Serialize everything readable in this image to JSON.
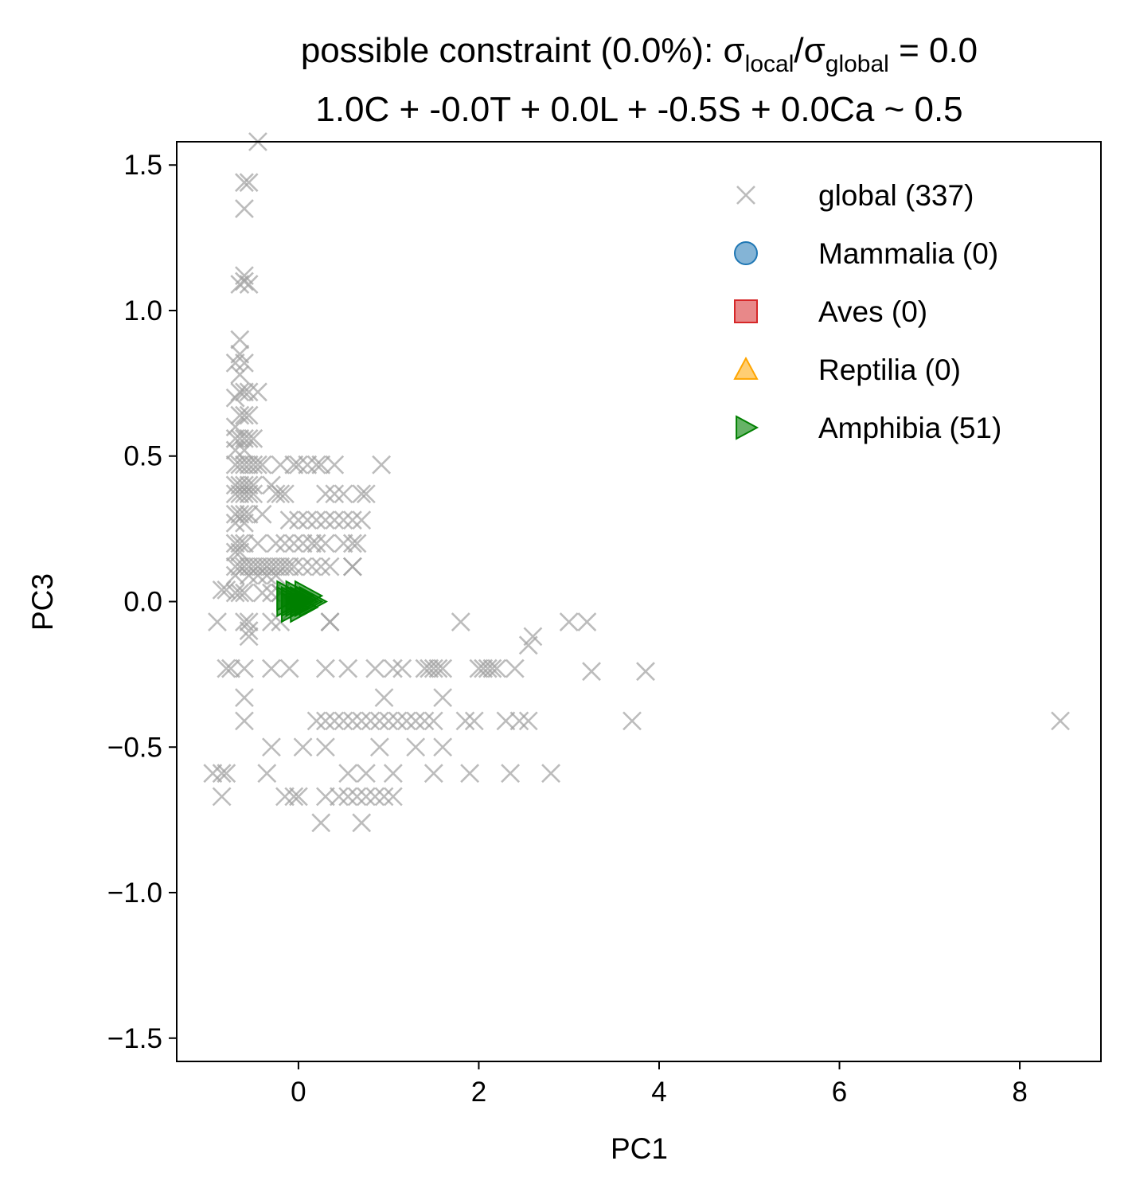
{
  "chart_data": {
    "type": "scatter",
    "title": {
      "line1_prefix": "possible constraint (0.0%): σ",
      "sub_local": "local",
      "slash": "/σ",
      "sub_global": "global",
      "line1_suffix": " = 0.0",
      "line2": "1.0C + -0.0T + 0.0L + -0.5S + 0.0Ca ~ 0.5"
    },
    "xlabel": "PC1",
    "ylabel": "PC3",
    "xlim": [
      -1.35,
      8.9
    ],
    "ylim": [
      -1.58,
      1.58
    ],
    "xticks": [
      0,
      2,
      4,
      6,
      8
    ],
    "xtick_labels": [
      "0",
      "2",
      "4",
      "6",
      "8"
    ],
    "yticks": [
      1.5,
      1.0,
      0.5,
      0.0,
      -0.5,
      -1.0,
      -1.5
    ],
    "ytick_labels": [
      "1.5",
      "1.0",
      "0.5",
      "0.0",
      "−0.5",
      "−1.0",
      "−1.5"
    ],
    "grid": false,
    "legend_position": "top-right",
    "legend": [
      {
        "label": "global (337)",
        "marker": "x",
        "color": "#a0a0a0"
      },
      {
        "label": "Mammalia (0)",
        "marker": "circle",
        "color": "#1f77b4"
      },
      {
        "label": "Aves (0)",
        "marker": "square",
        "color": "#d62728"
      },
      {
        "label": "Reptilia (0)",
        "marker": "triangle-up",
        "color": "#ffa500"
      },
      {
        "label": "Amphibia (51)",
        "marker": "triangle-right",
        "color": "#008000"
      }
    ],
    "series": [
      {
        "name": "global (337)",
        "marker": "x",
        "color": "#a0a0a0",
        "points": [
          [
            -0.45,
            1.58
          ],
          [
            -0.6,
            1.44
          ],
          [
            -0.55,
            1.44
          ],
          [
            -0.6,
            1.35
          ],
          [
            -0.6,
            1.12
          ],
          [
            -0.65,
            1.09
          ],
          [
            -0.55,
            1.09
          ],
          [
            -0.6,
            1.1
          ],
          [
            -0.65,
            0.9
          ],
          [
            -0.65,
            0.85
          ],
          [
            -0.6,
            0.82
          ],
          [
            -0.7,
            0.82
          ],
          [
            -0.65,
            0.78
          ],
          [
            -0.65,
            0.72
          ],
          [
            -0.6,
            0.72
          ],
          [
            -0.55,
            0.72
          ],
          [
            -0.7,
            0.7
          ],
          [
            -0.45,
            0.72
          ],
          [
            -0.65,
            0.64
          ],
          [
            -0.6,
            0.64
          ],
          [
            -0.55,
            0.64
          ],
          [
            -0.7,
            0.6
          ],
          [
            -0.7,
            0.56
          ],
          [
            -0.65,
            0.56
          ],
          [
            -0.6,
            0.56
          ],
          [
            -0.55,
            0.56
          ],
          [
            -0.5,
            0.56
          ],
          [
            -0.7,
            0.52
          ],
          [
            -0.6,
            0.52
          ],
          [
            -0.7,
            0.47
          ],
          [
            -0.65,
            0.47
          ],
          [
            -0.6,
            0.47
          ],
          [
            -0.55,
            0.47
          ],
          [
            -0.5,
            0.47
          ],
          [
            -0.7,
            0.4
          ],
          [
            -0.65,
            0.4
          ],
          [
            -0.6,
            0.4
          ],
          [
            -0.55,
            0.4
          ],
          [
            -0.5,
            0.4
          ],
          [
            -0.7,
            0.37
          ],
          [
            -0.65,
            0.37
          ],
          [
            -0.6,
            0.37
          ],
          [
            -0.55,
            0.37
          ],
          [
            -0.5,
            0.37
          ],
          [
            -0.7,
            0.3
          ],
          [
            -0.65,
            0.3
          ],
          [
            -0.6,
            0.3
          ],
          [
            -0.55,
            0.3
          ],
          [
            -0.4,
            0.3
          ],
          [
            -0.7,
            0.27
          ],
          [
            -0.6,
            0.27
          ],
          [
            -0.7,
            0.2
          ],
          [
            -0.65,
            0.2
          ],
          [
            -0.6,
            0.2
          ],
          [
            -0.45,
            0.2
          ],
          [
            -0.7,
            0.17
          ],
          [
            -0.65,
            0.17
          ],
          [
            -0.7,
            0.12
          ],
          [
            -0.65,
            0.12
          ],
          [
            -0.6,
            0.12
          ],
          [
            -0.55,
            0.12
          ],
          [
            -0.5,
            0.12
          ],
          [
            -0.45,
            0.12
          ],
          [
            -0.4,
            0.12
          ],
          [
            -0.35,
            0.12
          ],
          [
            -0.3,
            0.12
          ],
          [
            -0.25,
            0.12
          ],
          [
            -0.2,
            0.12
          ],
          [
            -0.15,
            0.12
          ],
          [
            -0.1,
            0.12
          ],
          [
            -0.7,
            0.09
          ],
          [
            -0.55,
            0.09
          ],
          [
            -0.45,
            0.09
          ],
          [
            -0.35,
            0.09
          ],
          [
            -0.25,
            0.09
          ],
          [
            -0.85,
            0.04
          ],
          [
            -0.8,
            0.04
          ],
          [
            -0.7,
            0.03
          ],
          [
            -0.65,
            0.03
          ],
          [
            -0.6,
            0.03
          ],
          [
            -0.4,
            0.03
          ],
          [
            -0.3,
            0.03
          ],
          [
            -0.2,
            0.03
          ],
          [
            -0.45,
            0.47
          ],
          [
            -0.4,
            0.47
          ],
          [
            -0.2,
            0.47
          ],
          [
            -0.3,
            0.4
          ],
          [
            -0.2,
            0.37
          ],
          [
            -0.05,
            0.47
          ],
          [
            0.0,
            0.47
          ],
          [
            0.1,
            0.47
          ],
          [
            0.2,
            0.47
          ],
          [
            0.25,
            0.47
          ],
          [
            0.4,
            0.47
          ],
          [
            0.92,
            0.47
          ],
          [
            -0.25,
            0.37
          ],
          [
            -0.15,
            0.37
          ],
          [
            0.3,
            0.37
          ],
          [
            0.4,
            0.37
          ],
          [
            0.5,
            0.37
          ],
          [
            0.7,
            0.37
          ],
          [
            0.75,
            0.37
          ],
          [
            -0.1,
            0.28
          ],
          [
            0.0,
            0.28
          ],
          [
            0.1,
            0.28
          ],
          [
            0.2,
            0.28
          ],
          [
            0.3,
            0.28
          ],
          [
            0.4,
            0.28
          ],
          [
            0.5,
            0.28
          ],
          [
            0.6,
            0.28
          ],
          [
            0.7,
            0.28
          ],
          [
            -0.25,
            0.2
          ],
          [
            -0.15,
            0.2
          ],
          [
            -0.05,
            0.2
          ],
          [
            0.05,
            0.2
          ],
          [
            0.15,
            0.2
          ],
          [
            0.2,
            0.2
          ],
          [
            0.3,
            0.2
          ],
          [
            0.5,
            0.2
          ],
          [
            0.6,
            0.2
          ],
          [
            0.65,
            0.2
          ],
          [
            -0.05,
            0.12
          ],
          [
            0.05,
            0.12
          ],
          [
            0.15,
            0.12
          ],
          [
            0.25,
            0.12
          ],
          [
            0.35,
            0.12
          ],
          [
            0.6,
            0.12
          ],
          [
            0.6,
            0.12
          ],
          [
            -0.2,
            0.03
          ],
          [
            0.35,
            -0.07
          ],
          [
            -0.9,
            -0.07
          ],
          [
            -0.6,
            -0.07
          ],
          [
            -0.55,
            -0.07
          ],
          [
            -0.3,
            -0.07
          ],
          [
            -0.2,
            -0.07
          ],
          [
            0.35,
            -0.07
          ],
          [
            -0.55,
            -0.1
          ],
          [
            -0.55,
            -0.12
          ],
          [
            -0.8,
            -0.23
          ],
          [
            -0.75,
            -0.23
          ],
          [
            -0.6,
            -0.23
          ],
          [
            -0.3,
            -0.23
          ],
          [
            -0.1,
            -0.23
          ],
          [
            0.3,
            -0.23
          ],
          [
            0.55,
            -0.23
          ],
          [
            0.85,
            -0.23
          ],
          [
            1.05,
            -0.23
          ],
          [
            1.15,
            -0.23
          ],
          [
            1.4,
            -0.23
          ],
          [
            1.45,
            -0.23
          ],
          [
            1.5,
            -0.23
          ],
          [
            1.55,
            -0.23
          ],
          [
            1.6,
            -0.23
          ],
          [
            2.0,
            -0.23
          ],
          [
            2.05,
            -0.23
          ],
          [
            2.1,
            -0.23
          ],
          [
            2.15,
            -0.23
          ],
          [
            2.2,
            -0.23
          ],
          [
            2.4,
            -0.23
          ],
          [
            -0.6,
            -0.33
          ],
          [
            0.95,
            -0.33
          ],
          [
            1.6,
            -0.33
          ],
          [
            0.2,
            -0.41
          ],
          [
            0.3,
            -0.41
          ],
          [
            0.4,
            -0.41
          ],
          [
            0.5,
            -0.41
          ],
          [
            0.6,
            -0.41
          ],
          [
            0.7,
            -0.41
          ],
          [
            0.8,
            -0.41
          ],
          [
            0.9,
            -0.41
          ],
          [
            1.0,
            -0.41
          ],
          [
            1.1,
            -0.41
          ],
          [
            1.2,
            -0.41
          ],
          [
            1.3,
            -0.41
          ],
          [
            1.4,
            -0.41
          ],
          [
            1.5,
            -0.41
          ],
          [
            1.85,
            -0.41
          ],
          [
            1.95,
            -0.41
          ],
          [
            2.3,
            -0.41
          ],
          [
            2.45,
            -0.41
          ],
          [
            2.55,
            -0.41
          ],
          [
            3.7,
            -0.41
          ],
          [
            8.45,
            -0.41
          ],
          [
            -0.6,
            -0.41
          ],
          [
            -0.3,
            -0.5
          ],
          [
            0.05,
            -0.5
          ],
          [
            0.3,
            -0.5
          ],
          [
            0.9,
            -0.5
          ],
          [
            1.3,
            -0.5
          ],
          [
            1.6,
            -0.5
          ],
          [
            -0.95,
            -0.59
          ],
          [
            -0.85,
            -0.59
          ],
          [
            -0.8,
            -0.59
          ],
          [
            -0.35,
            -0.59
          ],
          [
            0.55,
            -0.59
          ],
          [
            0.75,
            -0.59
          ],
          [
            1.05,
            -0.59
          ],
          [
            1.5,
            -0.59
          ],
          [
            1.9,
            -0.59
          ],
          [
            2.35,
            -0.59
          ],
          [
            2.8,
            -0.59
          ],
          [
            -0.85,
            -0.67
          ],
          [
            -0.15,
            -0.67
          ],
          [
            -0.05,
            -0.67
          ],
          [
            0.0,
            -0.67
          ],
          [
            0.3,
            -0.67
          ],
          [
            0.45,
            -0.67
          ],
          [
            0.55,
            -0.67
          ],
          [
            0.65,
            -0.67
          ],
          [
            0.75,
            -0.67
          ],
          [
            0.85,
            -0.67
          ],
          [
            0.95,
            -0.67
          ],
          [
            1.05,
            -0.67
          ],
          [
            0.25,
            -0.76
          ],
          [
            0.7,
            -0.76
          ],
          [
            1.8,
            -0.07
          ],
          [
            3.0,
            -0.07
          ],
          [
            3.2,
            -0.07
          ],
          [
            2.6,
            -0.12
          ],
          [
            2.55,
            -0.15
          ],
          [
            3.25,
            -0.24
          ],
          [
            3.85,
            -0.24
          ]
        ]
      },
      {
        "name": "Amphibia (51)",
        "marker": "triangle-right",
        "color": "#008000",
        "points": [
          [
            -0.1,
            0.0
          ],
          [
            -0.05,
            0.0
          ],
          [
            0.0,
            0.0
          ],
          [
            0.05,
            0.0
          ],
          [
            0.1,
            0.0
          ],
          [
            0.15,
            0.0
          ],
          [
            -0.1,
            0.02
          ],
          [
            0.0,
            0.02
          ],
          [
            0.1,
            0.02
          ],
          [
            -0.05,
            -0.02
          ],
          [
            0.05,
            -0.02
          ]
        ]
      }
    ]
  }
}
